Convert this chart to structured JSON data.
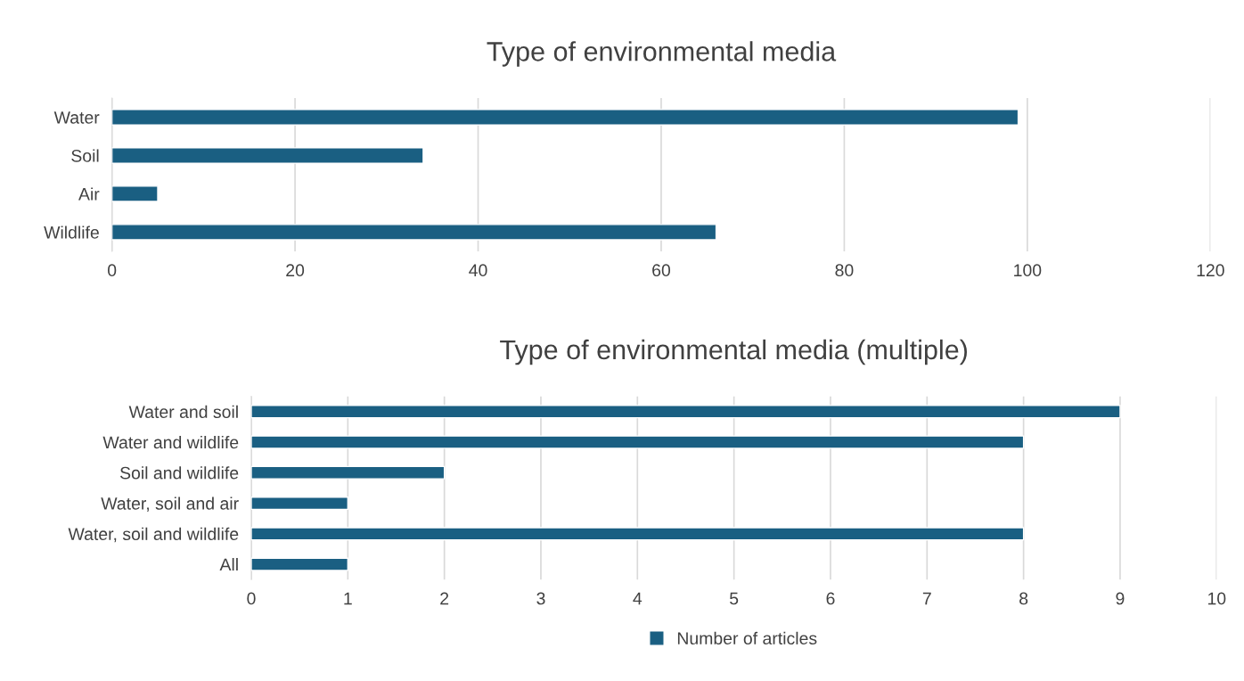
{
  "chart_data": [
    {
      "type": "bar",
      "orientation": "horizontal",
      "title": "Type of environmental media",
      "categories": [
        "Water",
        "Soil",
        "Air",
        "Wildlife"
      ],
      "series": [
        {
          "color": "#1a5f82",
          "values": [
            99,
            34,
            5,
            66
          ]
        }
      ],
      "xlim": [
        0,
        120
      ],
      "xticks": [
        0,
        20,
        40,
        60,
        80,
        100,
        120
      ],
      "grid": "x",
      "legend": false
    },
    {
      "type": "bar",
      "orientation": "horizontal",
      "title": "Type of environmental media (multiple)",
      "categories": [
        "Water and soil",
        "Water and wildlife",
        "Soil and wildlife",
        "Water, soil and air",
        "Water, soil and wildlife",
        "All"
      ],
      "series": [
        {
          "name": "Number of articles",
          "color": "#1a5f82",
          "values": [
            9,
            8,
            2,
            1,
            8,
            1
          ]
        }
      ],
      "xlim": [
        0,
        10
      ],
      "xticks": [
        0,
        1,
        2,
        3,
        4,
        5,
        6,
        7,
        8,
        9,
        10
      ],
      "grid": "x",
      "legend": "bottom"
    }
  ]
}
